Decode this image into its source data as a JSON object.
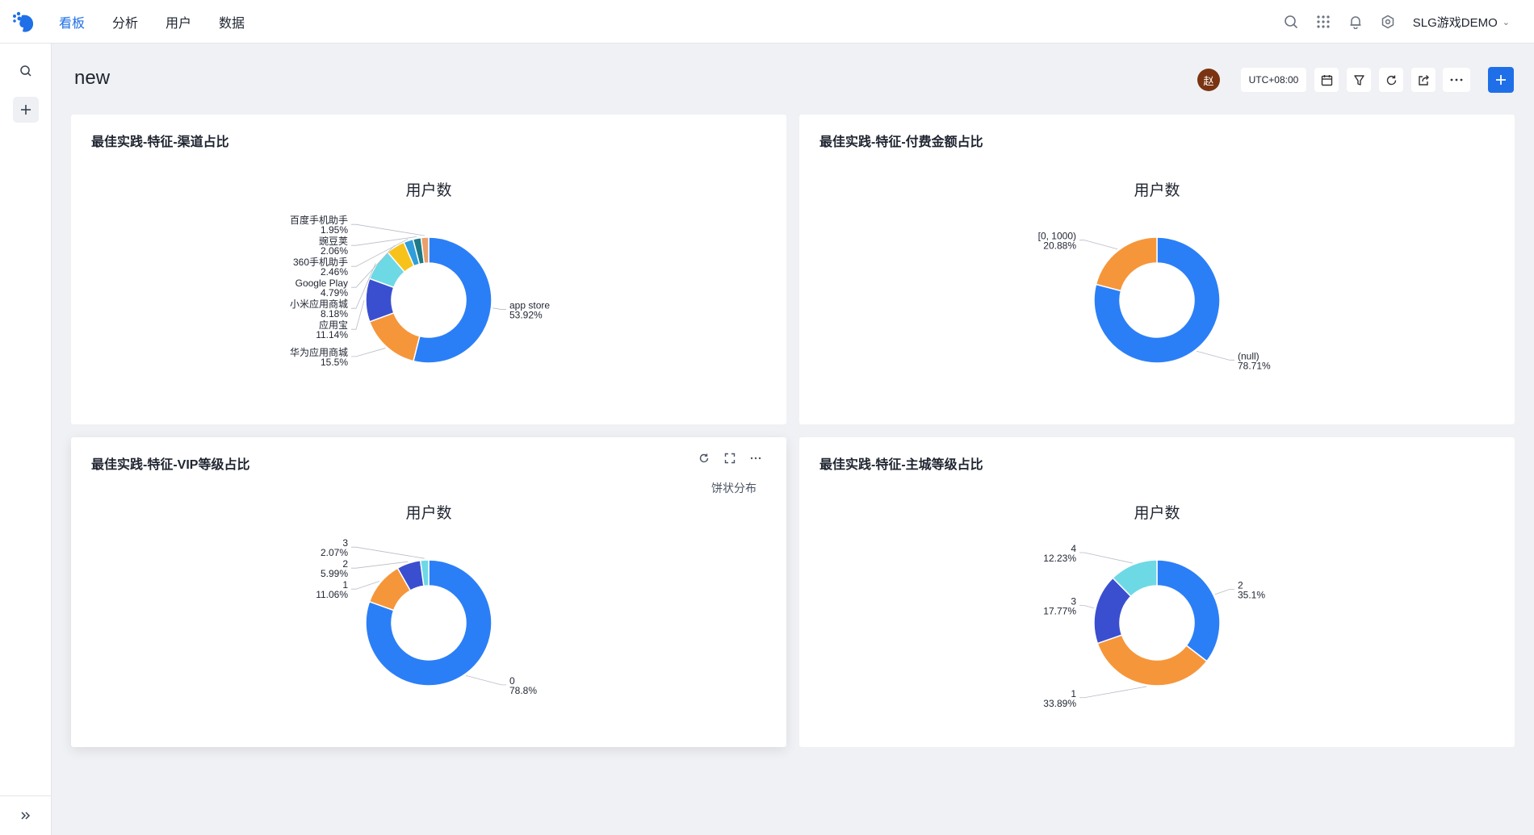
{
  "nav": {
    "items": [
      "看板",
      "分析",
      "用户",
      "数据"
    ],
    "active_index": 0,
    "project_name": "SLG游戏DEMO"
  },
  "header": {
    "title": "new",
    "avatar_text": "赵",
    "timezone": "UTC+08:00"
  },
  "colors": {
    "accent": "#1f6fe8",
    "avatar": "#7a3411",
    "series": [
      "#2b7ff6",
      "#f6963a",
      "#3a4fcf",
      "#6dd9e5",
      "#f7c21a",
      "#2f9edb",
      "#1d7a86",
      "#e9a06b",
      "#b2d7a5",
      "#a8e0f0",
      "#fbe08a"
    ]
  },
  "cards": [
    {
      "title": "最佳实践-特征-渠道占比",
      "hover": false,
      "chart_data": {
        "type": "pie",
        "title": "用户数",
        "slices": [
          {
            "name": "app store",
            "value": 53.92,
            "label": "53.92%"
          },
          {
            "name": "华为应用商城",
            "value": 15.5,
            "label": "15.5%"
          },
          {
            "name": "应用宝",
            "value": 11.14,
            "label": "11.14%"
          },
          {
            "name": "小米应用商城",
            "value": 8.18,
            "label": "8.18%"
          },
          {
            "name": "Google Play",
            "value": 4.79,
            "label": "4.79%"
          },
          {
            "name": "360手机助手",
            "value": 2.46,
            "label": "2.46%"
          },
          {
            "name": "豌豆荚",
            "value": 2.06,
            "label": "2.06%"
          },
          {
            "name": "百度手机助手",
            "value": 1.95,
            "label": "1.95%"
          }
        ]
      }
    },
    {
      "title": "最佳实践-特征-付费金额占比",
      "hover": false,
      "chart_data": {
        "type": "pie",
        "title": "用户数",
        "slices": [
          {
            "name": "(null)",
            "value": 78.71,
            "label": "78.71%"
          },
          {
            "name": "[0, 1000)",
            "value": 20.88,
            "label": "20.88%"
          }
        ]
      }
    },
    {
      "title": "最佳实践-特征-VIP等级占比",
      "hover": true,
      "chart_switch_label": "饼状分布",
      "chart_data": {
        "type": "pie",
        "title": "用户数",
        "slices": [
          {
            "name": "0",
            "value": 78.8,
            "label": "78.8%"
          },
          {
            "name": "1",
            "value": 11.06,
            "label": "11.06%"
          },
          {
            "name": "2",
            "value": 5.99,
            "label": "5.99%"
          },
          {
            "name": "3",
            "value": 2.07,
            "label": "2.07%"
          }
        ]
      }
    },
    {
      "title": "最佳实践-特征-主城等级占比",
      "hover": false,
      "chart_data": {
        "type": "pie",
        "title": "用户数",
        "slices": [
          {
            "name": "2",
            "value": 35.1,
            "label": "35.1%"
          },
          {
            "name": "1",
            "value": 33.89,
            "label": "33.89%"
          },
          {
            "name": "3",
            "value": 17.77,
            "label": "17.77%"
          },
          {
            "name": "4",
            "value": 12.23,
            "label": "12.23%"
          }
        ]
      }
    }
  ]
}
